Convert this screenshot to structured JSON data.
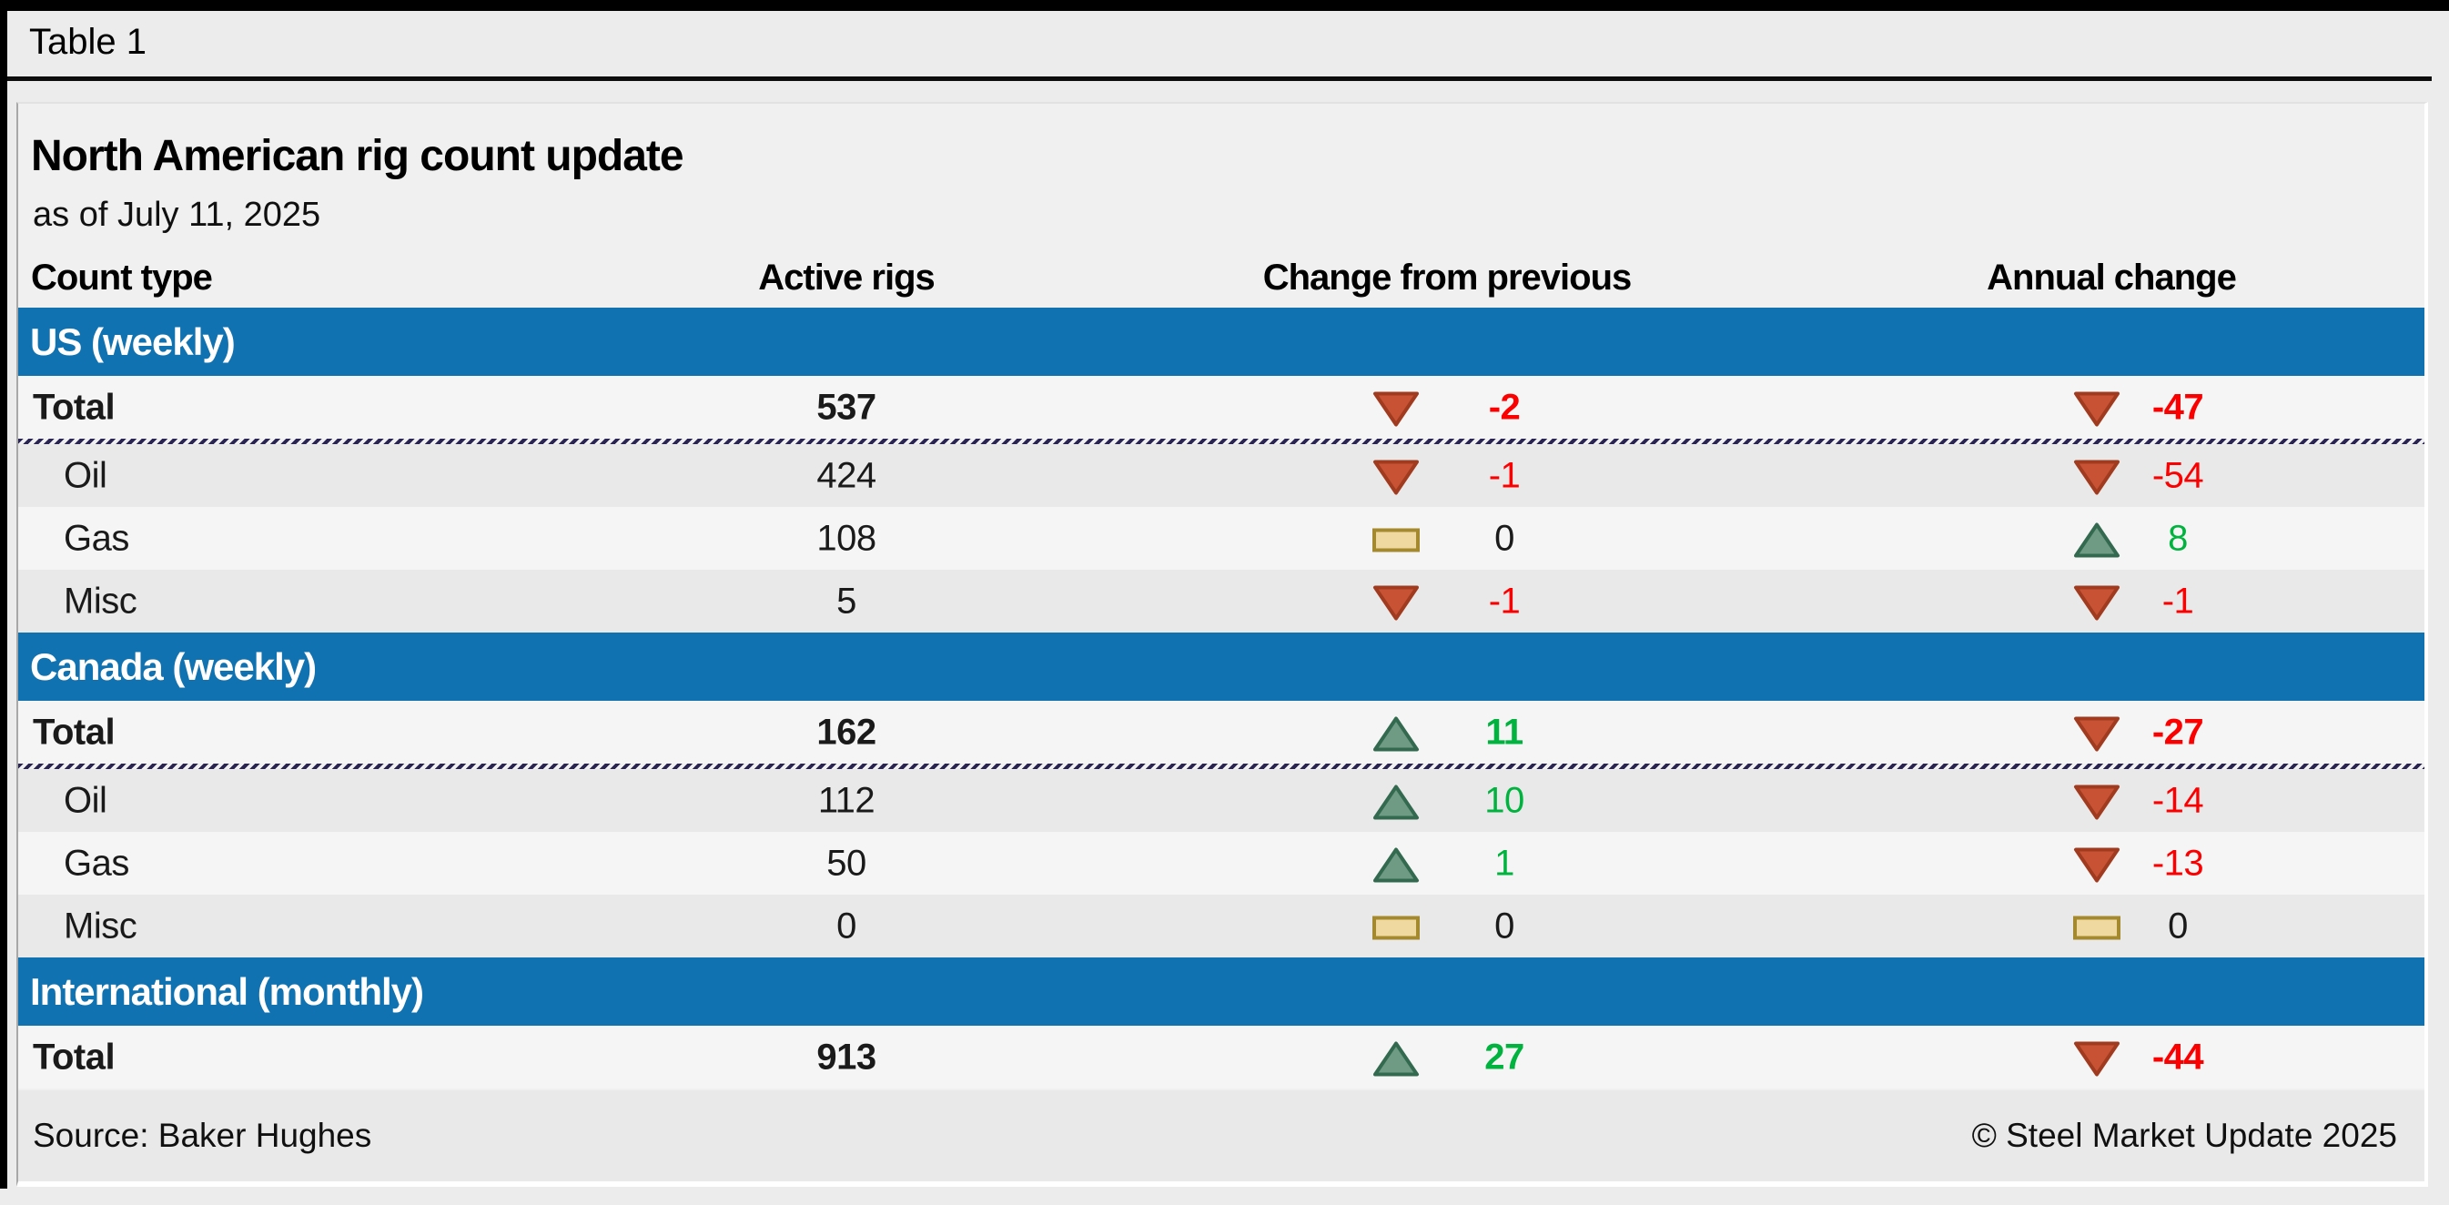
{
  "window": {
    "label": "Table 1"
  },
  "chart_data": {
    "type": "table",
    "title": "North American rig count update",
    "subtitle": "as of July 11, 2025",
    "columns": [
      "Count type",
      "Active rigs",
      "Change from previous",
      "Annual change"
    ],
    "sections": [
      {
        "name": "US (weekly)",
        "rows": [
          {
            "count_type": "Total",
            "active_rigs": 537,
            "change_from_previous": -2,
            "annual_change": -47
          },
          {
            "count_type": "Oil",
            "active_rigs": 424,
            "change_from_previous": -1,
            "annual_change": -54
          },
          {
            "count_type": "Gas",
            "active_rigs": 108,
            "change_from_previous": 0,
            "annual_change": 8
          },
          {
            "count_type": "Misc",
            "active_rigs": 5,
            "change_from_previous": -1,
            "annual_change": -1
          }
        ]
      },
      {
        "name": "Canada (weekly)",
        "rows": [
          {
            "count_type": "Total",
            "active_rigs": 162,
            "change_from_previous": 11,
            "annual_change": -27
          },
          {
            "count_type": "Oil",
            "active_rigs": 112,
            "change_from_previous": 10,
            "annual_change": -14
          },
          {
            "count_type": "Gas",
            "active_rigs": 50,
            "change_from_previous": 1,
            "annual_change": -13
          },
          {
            "count_type": "Misc",
            "active_rigs": 0,
            "change_from_previous": 0,
            "annual_change": 0
          }
        ]
      },
      {
        "name": "International (monthly)",
        "rows": [
          {
            "count_type": "Total",
            "active_rigs": 913,
            "change_from_previous": 27,
            "annual_change": -44
          }
        ]
      }
    ],
    "legend_semantics": {
      "down_triangle": "decrease",
      "up_triangle": "increase",
      "flat_bar": "no change"
    }
  },
  "footer": {
    "source": "Source: Baker Hughes",
    "copyright": "© Steel Market Update 2025"
  },
  "colors": {
    "band_blue": "#1072B0",
    "down_fill": "#C75334",
    "down_border": "#A03B1F",
    "up_fill": "#6F9A84",
    "up_border": "#336A4F",
    "flat_fill": "#EFD9A0",
    "flat_border": "#A5892F",
    "negative_text": "#FB0000",
    "positive_text": "#00B23E",
    "zero_text": "#1a1a1a",
    "separator_navy": "#2A2453"
  }
}
